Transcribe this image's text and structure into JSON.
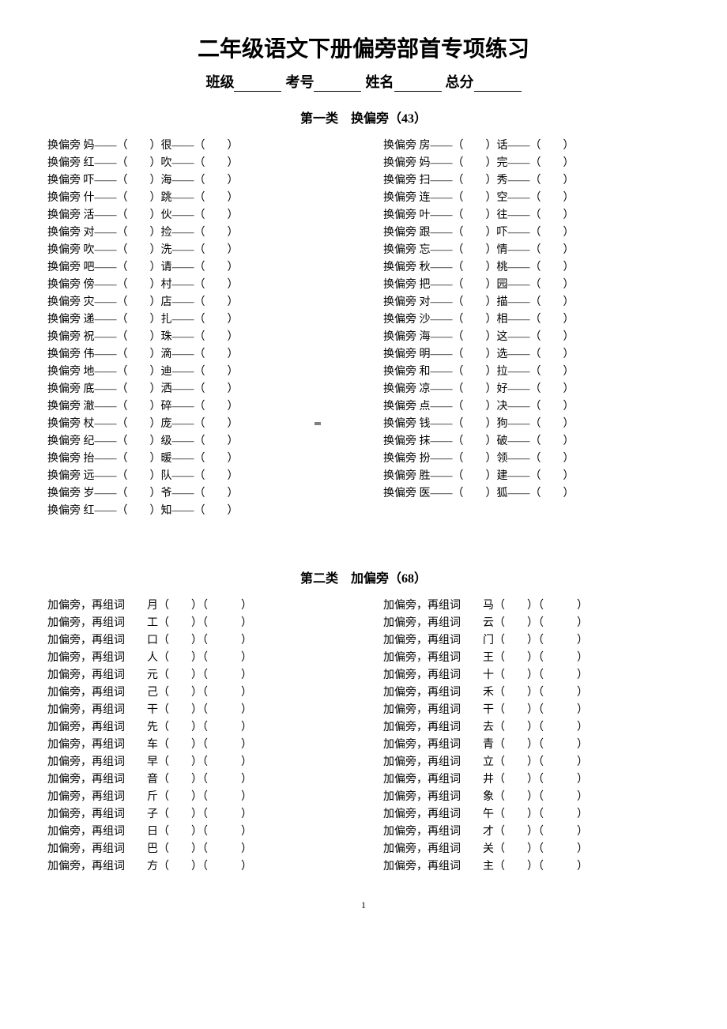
{
  "title": "二年级语文下册偏旁部首专项练习",
  "info": {
    "class": "班级",
    "exam": "考号",
    "name": "姓名",
    "total": "总分"
  },
  "section1": {
    "heading": "第一类　换偏旁（43）",
    "prefix": "换偏旁",
    "left": [
      [
        "妈",
        "很"
      ],
      [
        "红",
        "吹"
      ],
      [
        "吓",
        "海"
      ],
      [
        "什",
        "跳"
      ],
      [
        "活",
        "伙"
      ],
      [
        "对",
        "捡"
      ],
      [
        "吹",
        "洗"
      ],
      [
        "吧",
        "请"
      ],
      [
        "傍",
        "村"
      ],
      [
        "灾",
        "店"
      ],
      [
        "递",
        "扎"
      ],
      [
        "祝",
        "珠"
      ],
      [
        "伟",
        "滴"
      ],
      [
        "地",
        "迪"
      ],
      [
        "底",
        "洒"
      ],
      [
        "澈",
        "碎"
      ],
      [
        "杖",
        "庞"
      ],
      [
        "纪",
        "级"
      ],
      [
        "抬",
        "暖"
      ],
      [
        "远",
        "队"
      ],
      [
        "岁",
        "爷"
      ],
      [
        "红",
        "知"
      ]
    ],
    "right": [
      [
        "房",
        "话"
      ],
      [
        "妈",
        "完"
      ],
      [
        "扫",
        "秀"
      ],
      [
        "连",
        "空"
      ],
      [
        "叶",
        "往"
      ],
      [
        "跟",
        "吓"
      ],
      [
        "忘",
        "情"
      ],
      [
        "秋",
        "桃"
      ],
      [
        "把",
        "园"
      ],
      [
        "对",
        "描"
      ],
      [
        "沙",
        "相"
      ],
      [
        "海",
        "这"
      ],
      [
        "明",
        "选"
      ],
      [
        "和",
        "拉"
      ],
      [
        "凉",
        "好"
      ],
      [
        "点",
        "决"
      ],
      [
        "钱",
        "狗"
      ],
      [
        "抹",
        "破"
      ],
      [
        "扮",
        "领"
      ],
      [
        "胜",
        "建"
      ],
      [
        "医",
        "狐"
      ]
    ]
  },
  "section2": {
    "heading": "第二类　加偏旁（68）",
    "prefix": "加偏旁，再组词",
    "left": [
      "月",
      "工",
      "口",
      "人",
      "元",
      "己",
      "干",
      "先",
      "车",
      "早",
      "音",
      "斤",
      "子",
      "日",
      "巴",
      "方"
    ],
    "right": [
      "马",
      "云",
      "门",
      "王",
      "十",
      "禾",
      "干",
      "去",
      "青",
      "立",
      "井",
      "象",
      "午",
      "才",
      "关",
      "主"
    ]
  },
  "page": "1"
}
